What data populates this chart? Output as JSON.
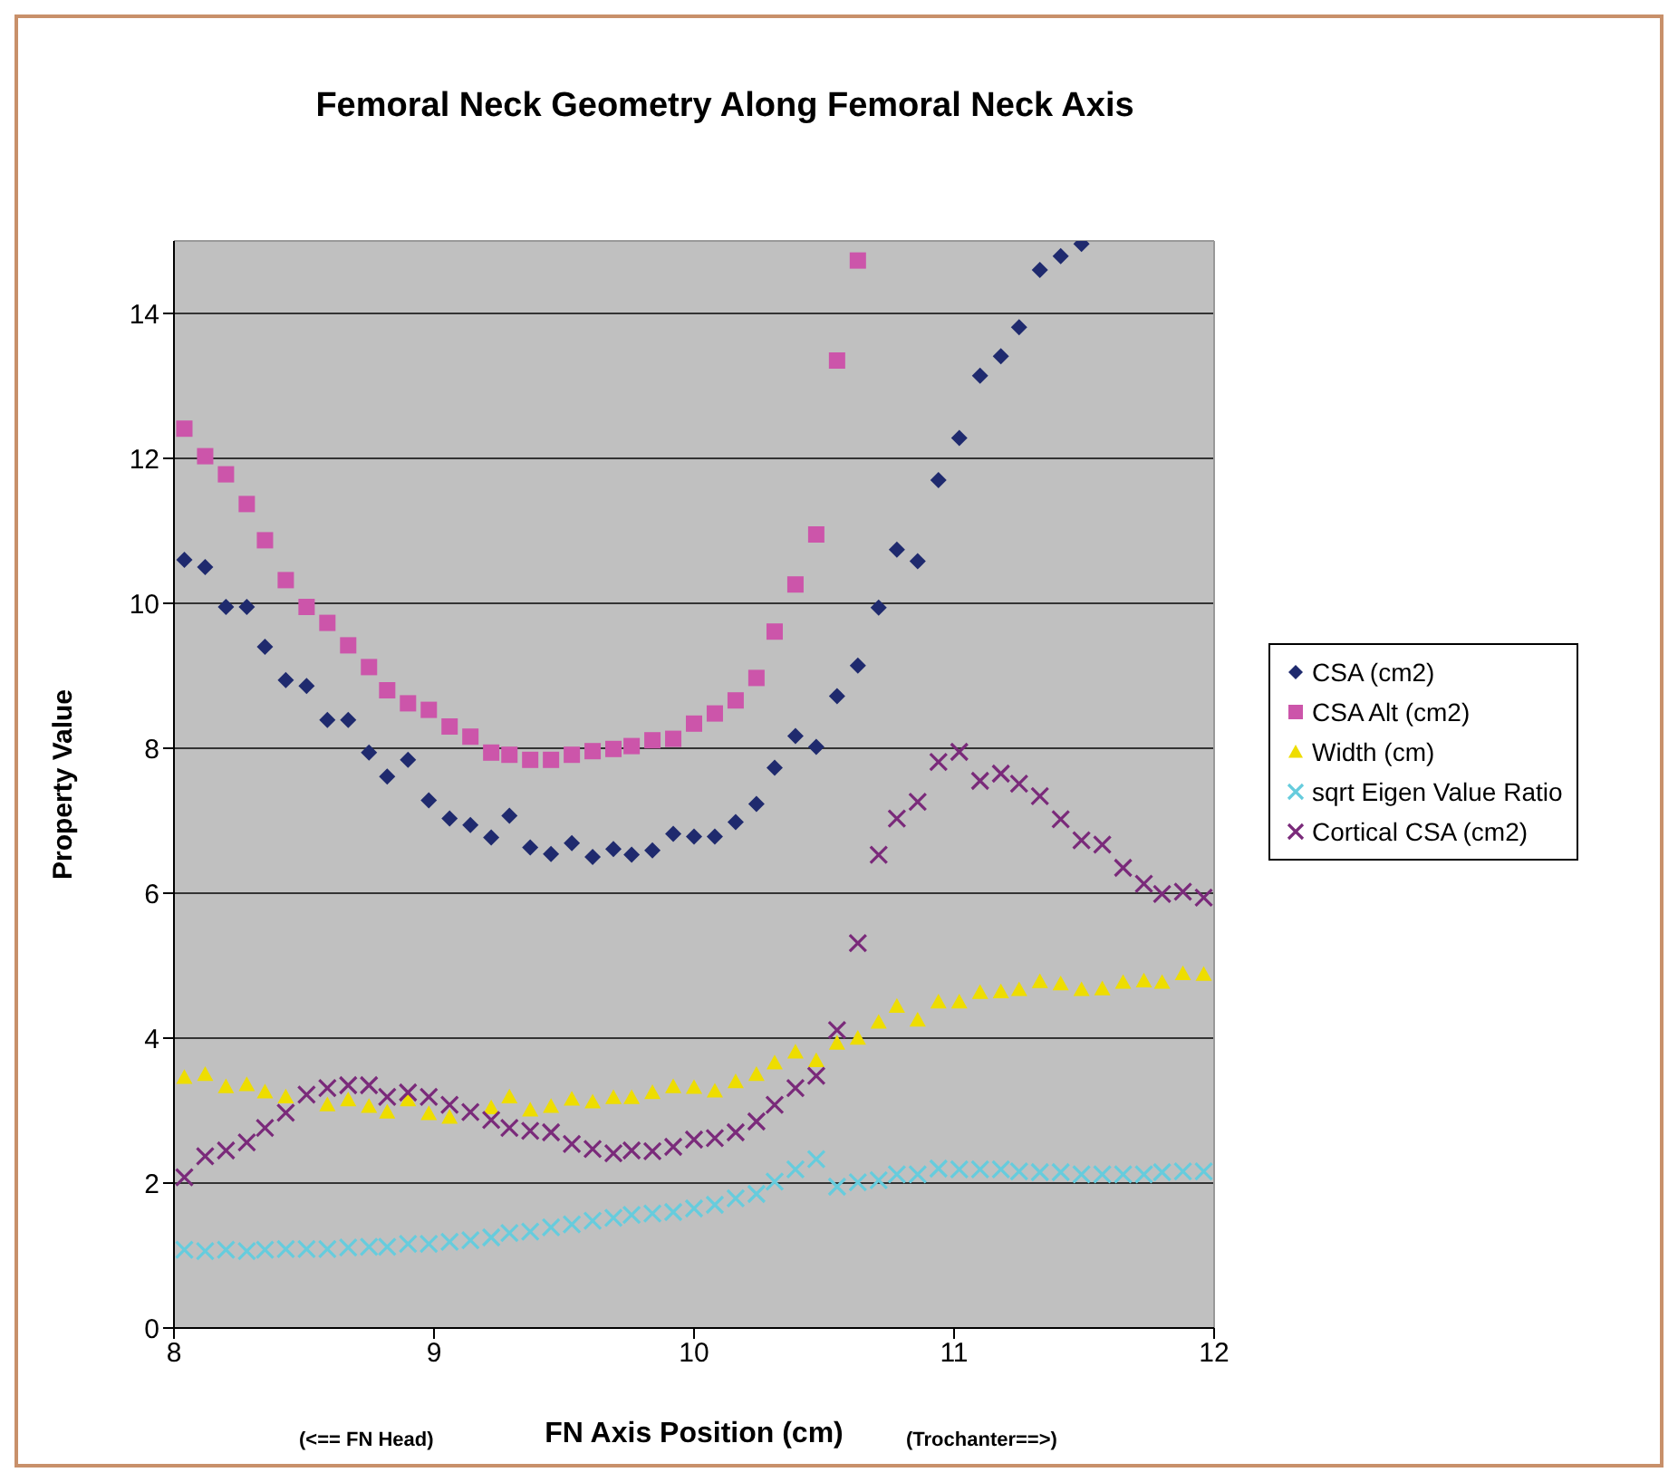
{
  "chart_data": {
    "type": "scatter",
    "title": "Femoral Neck Geometry Along Femoral Neck Axis",
    "xlabel": "FN Axis Position (cm)",
    "ylabel": "Property Value",
    "annotations": [
      "(<== FN Head)",
      "(Trochanter==>)"
    ],
    "x": [
      8.04,
      8.12,
      8.2,
      8.28,
      8.35,
      8.43,
      8.51,
      8.59,
      8.67,
      8.75,
      8.82,
      8.9,
      8.98,
      9.06,
      9.14,
      9.22,
      9.29,
      9.37,
      9.45,
      9.53,
      9.61,
      9.69,
      9.76,
      9.84,
      9.92,
      10.0,
      10.08,
      10.16,
      10.24,
      10.31,
      10.39,
      10.47,
      10.55,
      10.63,
      10.71,
      10.78,
      10.86,
      10.94,
      11.02,
      11.1,
      11.18,
      11.25,
      11.33,
      11.41,
      11.49,
      11.57,
      11.65,
      11.73,
      11.8,
      11.88,
      11.96
    ],
    "xlim": [
      8,
      12
    ],
    "xticks": [
      8,
      9,
      10,
      11,
      12
    ],
    "ylim": [
      0,
      15
    ],
    "yticks": [
      0,
      2,
      4,
      6,
      8,
      10,
      12,
      14
    ],
    "grid": "y",
    "legend": "right",
    "series": [
      {
        "name": "CSA (cm2)",
        "color": "#1f2a6e",
        "marker": "diamond",
        "values": [
          10.6,
          10.5,
          9.95,
          9.95,
          9.4,
          8.94,
          8.86,
          8.39,
          8.39,
          7.94,
          7.61,
          7.84,
          7.28,
          7.03,
          6.94,
          6.77,
          7.07,
          6.63,
          6.54,
          6.69,
          6.5,
          6.61,
          6.53,
          6.59,
          6.82,
          6.78,
          6.78,
          6.98,
          7.23,
          7.73,
          8.17,
          8.02,
          8.72,
          9.14,
          9.94,
          10.74,
          10.58,
          11.7,
          12.28,
          13.14,
          13.41,
          13.81,
          14.6,
          14.79,
          14.96,
          null,
          null,
          null,
          null,
          null,
          null
        ]
      },
      {
        "name": "CSA Alt (cm2)",
        "color": "#cc55aa",
        "marker": "square",
        "values": [
          12.41,
          12.03,
          11.78,
          11.37,
          10.87,
          10.32,
          9.95,
          9.73,
          9.42,
          9.12,
          8.8,
          8.62,
          8.53,
          8.3,
          8.16,
          7.94,
          7.91,
          7.84,
          7.84,
          7.91,
          7.96,
          7.99,
          8.03,
          8.11,
          8.13,
          8.34,
          8.48,
          8.66,
          8.97,
          9.61,
          10.26,
          10.95,
          13.35,
          14.73,
          null,
          null,
          null,
          null,
          null,
          null,
          null,
          null,
          null,
          null,
          null,
          null,
          null,
          null,
          null,
          null,
          null
        ]
      },
      {
        "name": "Width (cm)",
        "color": "#eedd00",
        "marker": "triangle",
        "values": [
          3.46,
          3.5,
          3.33,
          3.36,
          3.26,
          3.19,
          null,
          3.08,
          3.15,
          3.06,
          2.98,
          3.15,
          2.96,
          2.91,
          null,
          3.04,
          3.19,
          3.01,
          3.06,
          3.16,
          3.12,
          3.18,
          3.18,
          3.25,
          3.33,
          3.32,
          3.27,
          3.4,
          3.5,
          3.66,
          3.81,
          3.69,
          3.93,
          4.0,
          4.22,
          4.44,
          4.25,
          4.5,
          4.5,
          4.63,
          4.64,
          4.67,
          4.78,
          4.75,
          4.67,
          4.68,
          4.77,
          4.79,
          4.77,
          4.89,
          4.88
        ]
      },
      {
        "name": "sqrt Eigen Value Ratio",
        "color": "#66ccdd",
        "marker": "cross",
        "values": [
          1.08,
          1.06,
          1.08,
          1.06,
          1.08,
          1.09,
          1.09,
          1.09,
          1.11,
          1.12,
          1.12,
          1.16,
          1.16,
          1.19,
          1.21,
          1.25,
          1.31,
          1.33,
          1.39,
          1.43,
          1.48,
          1.52,
          1.56,
          1.58,
          1.6,
          1.65,
          1.7,
          1.79,
          1.85,
          2.02,
          2.19,
          2.33,
          1.95,
          2.01,
          2.04,
          2.12,
          2.12,
          2.2,
          2.19,
          2.19,
          2.19,
          2.16,
          2.15,
          2.15,
          2.12,
          2.12,
          2.12,
          2.12,
          2.15,
          2.16,
          2.16
        ]
      },
      {
        "name": "Cortical CSA (cm2)",
        "color": "#7a2a7a",
        "marker": "cross",
        "values": [
          2.08,
          2.37,
          2.45,
          2.56,
          2.76,
          2.97,
          3.22,
          3.31,
          3.35,
          3.35,
          3.19,
          3.25,
          3.19,
          3.08,
          2.98,
          2.87,
          2.76,
          2.72,
          2.7,
          2.54,
          2.47,
          2.41,
          2.45,
          2.44,
          2.5,
          2.6,
          2.62,
          2.7,
          2.85,
          3.08,
          3.31,
          3.48,
          4.11,
          5.31,
          6.53,
          7.03,
          7.26,
          7.81,
          7.95,
          7.55,
          7.65,
          7.51,
          7.34,
          7.02,
          6.73,
          6.67,
          6.35,
          6.13,
          5.99,
          6.02,
          5.94
        ]
      }
    ]
  }
}
